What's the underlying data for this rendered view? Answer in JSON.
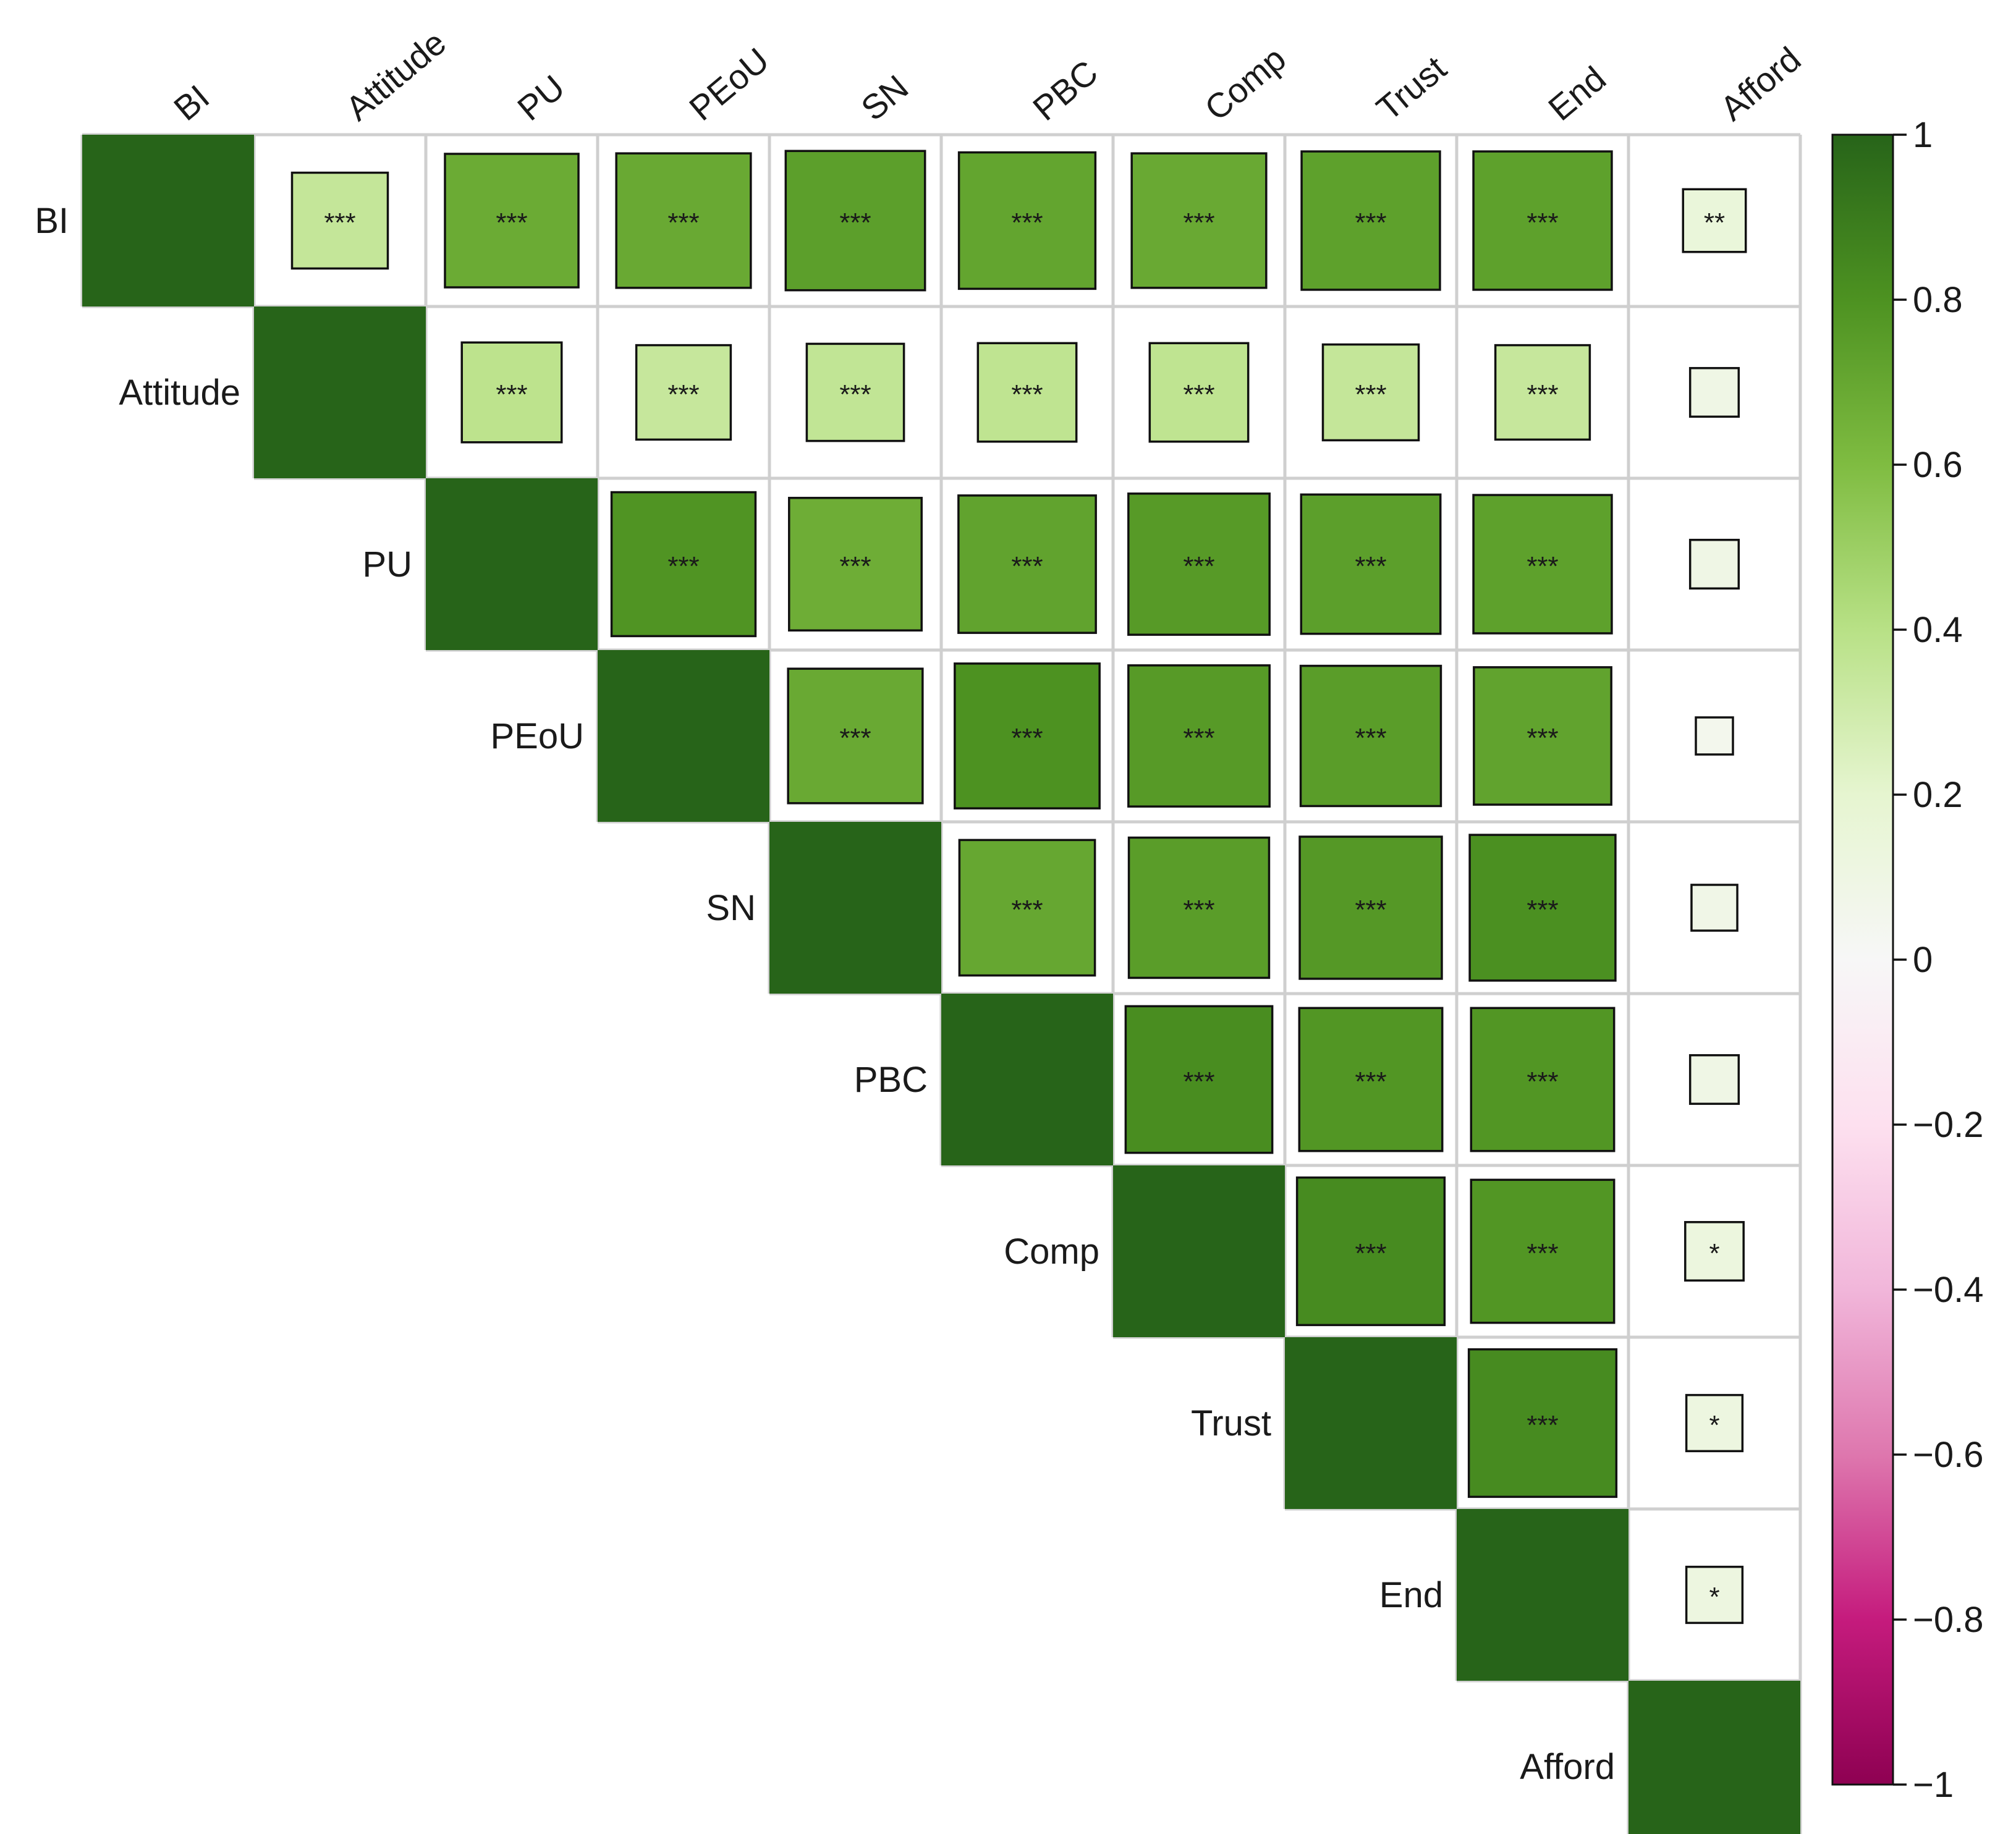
{
  "chart_data": {
    "type": "heatmap",
    "subtype": "correlation-matrix-upper-square",
    "variables": [
      "BI",
      "Attitude",
      "PU",
      "PEoU",
      "SN",
      "PBC",
      "Comp",
      "Trust",
      "End",
      "Afford"
    ],
    "correlations": [
      [
        1.0,
        0.35,
        0.68,
        0.69,
        0.74,
        0.71,
        0.69,
        0.73,
        0.73,
        0.15
      ],
      [
        null,
        1.0,
        0.38,
        0.34,
        0.36,
        0.37,
        0.37,
        0.35,
        0.34,
        0.09
      ],
      [
        null,
        null,
        1.0,
        0.79,
        0.67,
        0.72,
        0.76,
        0.74,
        0.73,
        0.09
      ],
      [
        null,
        null,
        null,
        1.0,
        0.69,
        0.8,
        0.76,
        0.75,
        0.72,
        0.05
      ],
      [
        null,
        null,
        null,
        null,
        1.0,
        0.7,
        0.75,
        0.77,
        0.81,
        0.08
      ],
      [
        null,
        null,
        null,
        null,
        null,
        1.0,
        0.82,
        0.78,
        0.78,
        0.09
      ],
      [
        null,
        null,
        null,
        null,
        null,
        null,
        1.0,
        0.83,
        0.78,
        0.13
      ],
      [
        null,
        null,
        null,
        null,
        null,
        null,
        null,
        1.0,
        0.83,
        0.12
      ],
      [
        null,
        null,
        null,
        null,
        null,
        null,
        null,
        null,
        1.0,
        0.12
      ],
      [
        null,
        null,
        null,
        null,
        null,
        null,
        null,
        null,
        null,
        1.0
      ]
    ],
    "significance": [
      [
        "",
        "***",
        "***",
        "***",
        "***",
        "***",
        "***",
        "***",
        "***",
        "**"
      ],
      [
        null,
        "",
        "***",
        "***",
        "***",
        "***",
        "***",
        "***",
        "***",
        ""
      ],
      [
        null,
        null,
        "",
        "***",
        "***",
        "***",
        "***",
        "***",
        "***",
        ""
      ],
      [
        null,
        null,
        null,
        "",
        "***",
        "***",
        "***",
        "***",
        "***",
        ""
      ],
      [
        null,
        null,
        null,
        null,
        "",
        "***",
        "***",
        "***",
        "***",
        ""
      ],
      [
        null,
        null,
        null,
        null,
        null,
        "",
        "***",
        "***",
        "***",
        ""
      ],
      [
        null,
        null,
        null,
        null,
        null,
        null,
        "",
        "***",
        "***",
        "*"
      ],
      [
        null,
        null,
        null,
        null,
        null,
        null,
        null,
        "",
        "***",
        "*"
      ],
      [
        null,
        null,
        null,
        null,
        null,
        null,
        null,
        null,
        "",
        "*"
      ],
      [
        null,
        null,
        null,
        null,
        null,
        null,
        null,
        null,
        null,
        ""
      ]
    ],
    "colorbar": {
      "range": [
        -1,
        1
      ],
      "ticks": [
        1,
        0.8,
        0.6,
        0.4,
        0.2,
        0,
        -0.2,
        -0.4,
        -0.6,
        -0.8,
        -1
      ],
      "tick_labels": [
        "1",
        "0.8",
        "0.6",
        "0.4",
        "0.2",
        "0",
        "−0.2",
        "−0.4",
        "−0.6",
        "−0.8",
        "−1"
      ],
      "colors": [
        "#8e0152",
        "#c51b7d",
        "#de77ae",
        "#f1b6da",
        "#fde0ef",
        "#f7f7f7",
        "#e6f5d0",
        "#b8e186",
        "#7fbc41",
        "#4d9221",
        "#276419"
      ]
    },
    "legend_position": "right",
    "grid": true
  }
}
